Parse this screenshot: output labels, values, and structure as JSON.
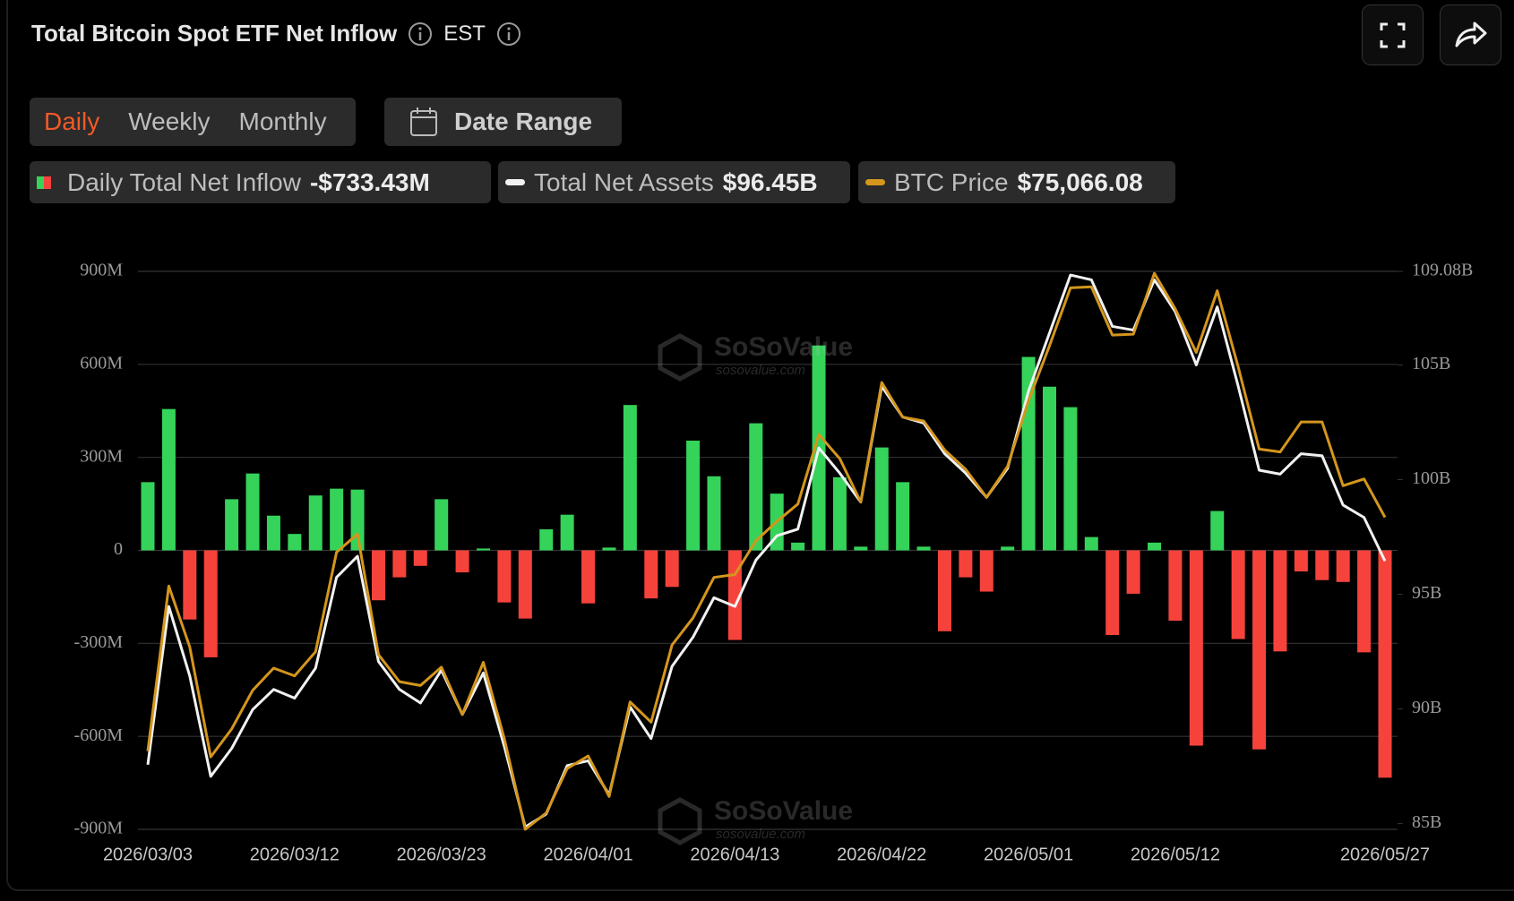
{
  "header": {
    "title": "Total Bitcoin Spot ETF Net Inflow",
    "timezone": "EST"
  },
  "controls": {
    "tabs": [
      "Daily",
      "Weekly",
      "Monthly"
    ],
    "active": 0,
    "date_range": "Date Range"
  },
  "watermark": [
    "SoSoValue",
    "sosovalue.com"
  ],
  "chart_data": {
    "type": "bar",
    "categories": [
      "2026/03/03",
      null,
      null,
      null,
      null,
      null,
      null,
      "2026/03/12",
      null,
      null,
      null,
      null,
      null,
      null,
      "2026/03/23",
      null,
      null,
      null,
      null,
      null,
      null,
      "2026/04/01",
      null,
      null,
      null,
      null,
      null,
      null,
      "2026/04/13",
      null,
      null,
      null,
      null,
      null,
      null,
      "2026/04/22",
      null,
      null,
      null,
      null,
      null,
      null,
      "2026/05/01",
      null,
      null,
      null,
      null,
      null,
      null,
      "2026/05/12",
      null,
      null,
      null,
      null,
      null,
      null,
      null,
      null,
      null,
      "2026/05/27"
    ],
    "series": [
      {
        "name": "Daily Total Net Inflow",
        "type": "bar",
        "color": "#35d35a",
        "negative_color": "#f5433c",
        "values": [
          220,
          456,
          -223,
          -345,
          165,
          248,
          112,
          53,
          177,
          199,
          196,
          -161,
          -87,
          -50,
          165,
          -71,
          6,
          -168,
          -220,
          68,
          115,
          -171,
          9,
          469,
          -155,
          -118,
          354,
          239,
          -289,
          410,
          183,
          25,
          661,
          236,
          12,
          332,
          220,
          12,
          -261,
          -87,
          -133,
          12,
          624,
          528,
          462,
          43,
          -273,
          -140,
          25,
          -227,
          -630,
          127,
          -286,
          -642,
          -326,
          -68,
          -96,
          -102,
          -329,
          -733.43
        ],
        "value_labels": [
          null,
          null,
          null,
          null,
          null,
          null,
          null,
          null,
          null,
          null,
          null,
          null,
          null,
          null,
          null,
          null,
          null,
          null,
          null,
          null,
          null,
          null,
          null,
          null,
          null,
          null,
          null,
          null,
          null,
          null,
          null,
          null,
          null,
          null,
          null,
          null,
          null,
          null,
          null,
          null,
          null,
          null,
          null,
          null,
          null,
          null,
          null,
          null,
          null,
          null,
          null,
          null,
          null,
          null,
          null,
          null,
          null,
          null,
          null,
          "-$733.43M"
        ]
      },
      {
        "name": "Total Net Assets",
        "type": "line",
        "axis": "y2",
        "color": "#f2f2f2",
        "values": [
          87.57,
          94.47,
          91.44,
          87.06,
          88.28,
          89.97,
          90.85,
          90.47,
          91.78,
          95.74,
          96.66,
          92.07,
          90.85,
          90.26,
          91.69,
          89.76,
          91.57,
          88.37,
          84.85,
          85.42,
          87.53,
          87.74,
          86.26,
          90.09,
          88.71,
          91.86,
          93.13,
          94.85,
          94.47,
          96.49,
          97.55,
          97.84,
          101.38,
          100.28,
          99.02,
          104.07,
          102.73,
          102.47,
          101.13,
          100.28,
          99.23,
          100.49,
          103.86,
          106.39,
          108.92,
          108.71,
          106.68,
          106.52,
          108.71,
          107.32,
          105.0,
          107.53,
          104.07,
          100.41,
          100.24,
          101.13,
          101.04,
          98.89,
          98.35,
          96.45
        ],
        "value_labels": [
          null,
          null,
          null,
          null,
          null,
          null,
          null,
          null,
          null,
          null,
          null,
          null,
          null,
          null,
          null,
          null,
          null,
          null,
          null,
          null,
          null,
          null,
          null,
          null,
          null,
          null,
          null,
          null,
          null,
          null,
          null,
          null,
          null,
          null,
          null,
          null,
          null,
          null,
          null,
          null,
          null,
          null,
          null,
          null,
          null,
          null,
          null,
          null,
          null,
          null,
          null,
          null,
          null,
          null,
          null,
          null,
          null,
          null,
          null,
          "$96.45B"
        ]
      },
      {
        "name": "BTC Price",
        "type": "line",
        "axis": "y3",
        "color": "#d4961c",
        "values": [
          67522,
          72847,
          70885,
          67336,
          68239,
          69484,
          70200,
          69951,
          70730,
          73937,
          74529,
          70636,
          69764,
          69640,
          70232,
          68706,
          70387,
          67927,
          65000,
          65529,
          66962,
          67367,
          66059,
          69110,
          68457,
          70948,
          71820,
          73128,
          73221,
          74311,
          74934,
          75494,
          77736,
          76958,
          75557,
          79418,
          78297,
          78172,
          77238,
          76615,
          75712,
          76709,
          78826,
          80601,
          82470,
          82501,
          80944,
          80975,
          82937,
          81785,
          80383,
          82376,
          79916,
          77269,
          77176,
          78141,
          78141,
          76086,
          76304,
          75066.08
        ],
        "value_labels": [
          null,
          null,
          null,
          null,
          null,
          null,
          null,
          null,
          null,
          null,
          null,
          null,
          null,
          null,
          null,
          null,
          null,
          null,
          null,
          null,
          null,
          null,
          null,
          null,
          null,
          null,
          null,
          null,
          null,
          null,
          null,
          null,
          null,
          null,
          null,
          null,
          null,
          null,
          null,
          null,
          null,
          null,
          null,
          null,
          null,
          null,
          null,
          null,
          null,
          null,
          null,
          null,
          null,
          null,
          null,
          null,
          null,
          null,
          null,
          "$75,066.08"
        ]
      }
    ],
    "ylim": [
      -900,
      900
    ],
    "yticks": [
      {
        "value": 900,
        "label": "900M"
      },
      {
        "value": 600,
        "label": "600M"
      },
      {
        "value": 300,
        "label": "300M"
      },
      0,
      {
        "value": -300,
        "label": "-300M"
      },
      {
        "value": -600,
        "label": "-600M"
      },
      {
        "value": -900,
        "label": "-900M"
      }
    ],
    "y2lim": [
      84.75,
      109.08
    ],
    "y2ticks": [
      {
        "value": 109.08,
        "label": "109.08B"
      },
      {
        "value": 105,
        "label": "105B"
      },
      {
        "value": 100,
        "label": "100B"
      },
      {
        "value": 95,
        "label": "95B"
      },
      {
        "value": 90,
        "label": "90B"
      },
      {
        "value": 85,
        "label": "85B"
      }
    ],
    "y3lim": [
      65000,
      83000
    ],
    "grid": true
  }
}
